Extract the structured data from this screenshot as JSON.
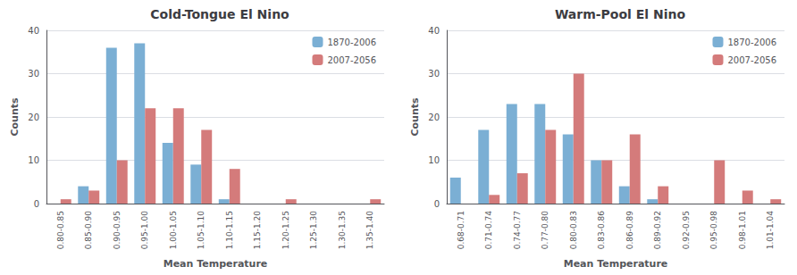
{
  "chart_data": [
    {
      "type": "bar",
      "title": "Cold-Tongue El Nino",
      "xlabel": "Mean Temperature",
      "ylabel": "Counts",
      "categories": [
        "0.80-0.85",
        "0.85-0.90",
        "0.90-0.95",
        "0.95-1.00",
        "1.00-1.05",
        "1.05-1.10",
        "1.10-1.15",
        "1.15-1.20",
        "1.20-1.25",
        "1.25-1.30",
        "1.30-1.35",
        "1.35-1.40"
      ],
      "series": [
        {
          "name": "1870-2006",
          "color": "#7bafd4",
          "values": [
            0,
            4,
            36,
            37,
            14,
            9,
            1,
            0,
            0,
            0,
            0,
            0
          ]
        },
        {
          "name": "2007-2056",
          "color": "#d47b7b",
          "values": [
            1,
            3,
            10,
            22,
            22,
            17,
            8,
            0,
            1,
            0,
            0,
            1
          ]
        }
      ],
      "ylim": [
        0,
        40
      ],
      "yticks": [
        0,
        10,
        20,
        30,
        40
      ],
      "grid": true,
      "legend": "upper right"
    },
    {
      "type": "bar",
      "title": "Warm-Pool El Nino",
      "xlabel": "Mean Temperature",
      "ylabel": "Counts",
      "categories": [
        "0.68-0.71",
        "0.71-0.74",
        "0.74-0.77",
        "0.77-0.80",
        "0.80-0.83",
        "0.83-0.86",
        "0.86-0.89",
        "0.89-0.92",
        "0.92-0.95",
        "0.95-0.98",
        "0.98-1.01",
        "1.01-1.04"
      ],
      "series": [
        {
          "name": "1870-2006",
          "color": "#7bafd4",
          "values": [
            6,
            17,
            23,
            23,
            16,
            10,
            4,
            1,
            0,
            0,
            0,
            0
          ]
        },
        {
          "name": "2007-2056",
          "color": "#d47b7b",
          "values": [
            0,
            2,
            7,
            17,
            30,
            10,
            16,
            4,
            0,
            10,
            3,
            1
          ]
        }
      ],
      "ylim": [
        0,
        40
      ],
      "yticks": [
        0,
        10,
        20,
        30,
        40
      ],
      "grid": true,
      "legend": "upper right"
    }
  ]
}
